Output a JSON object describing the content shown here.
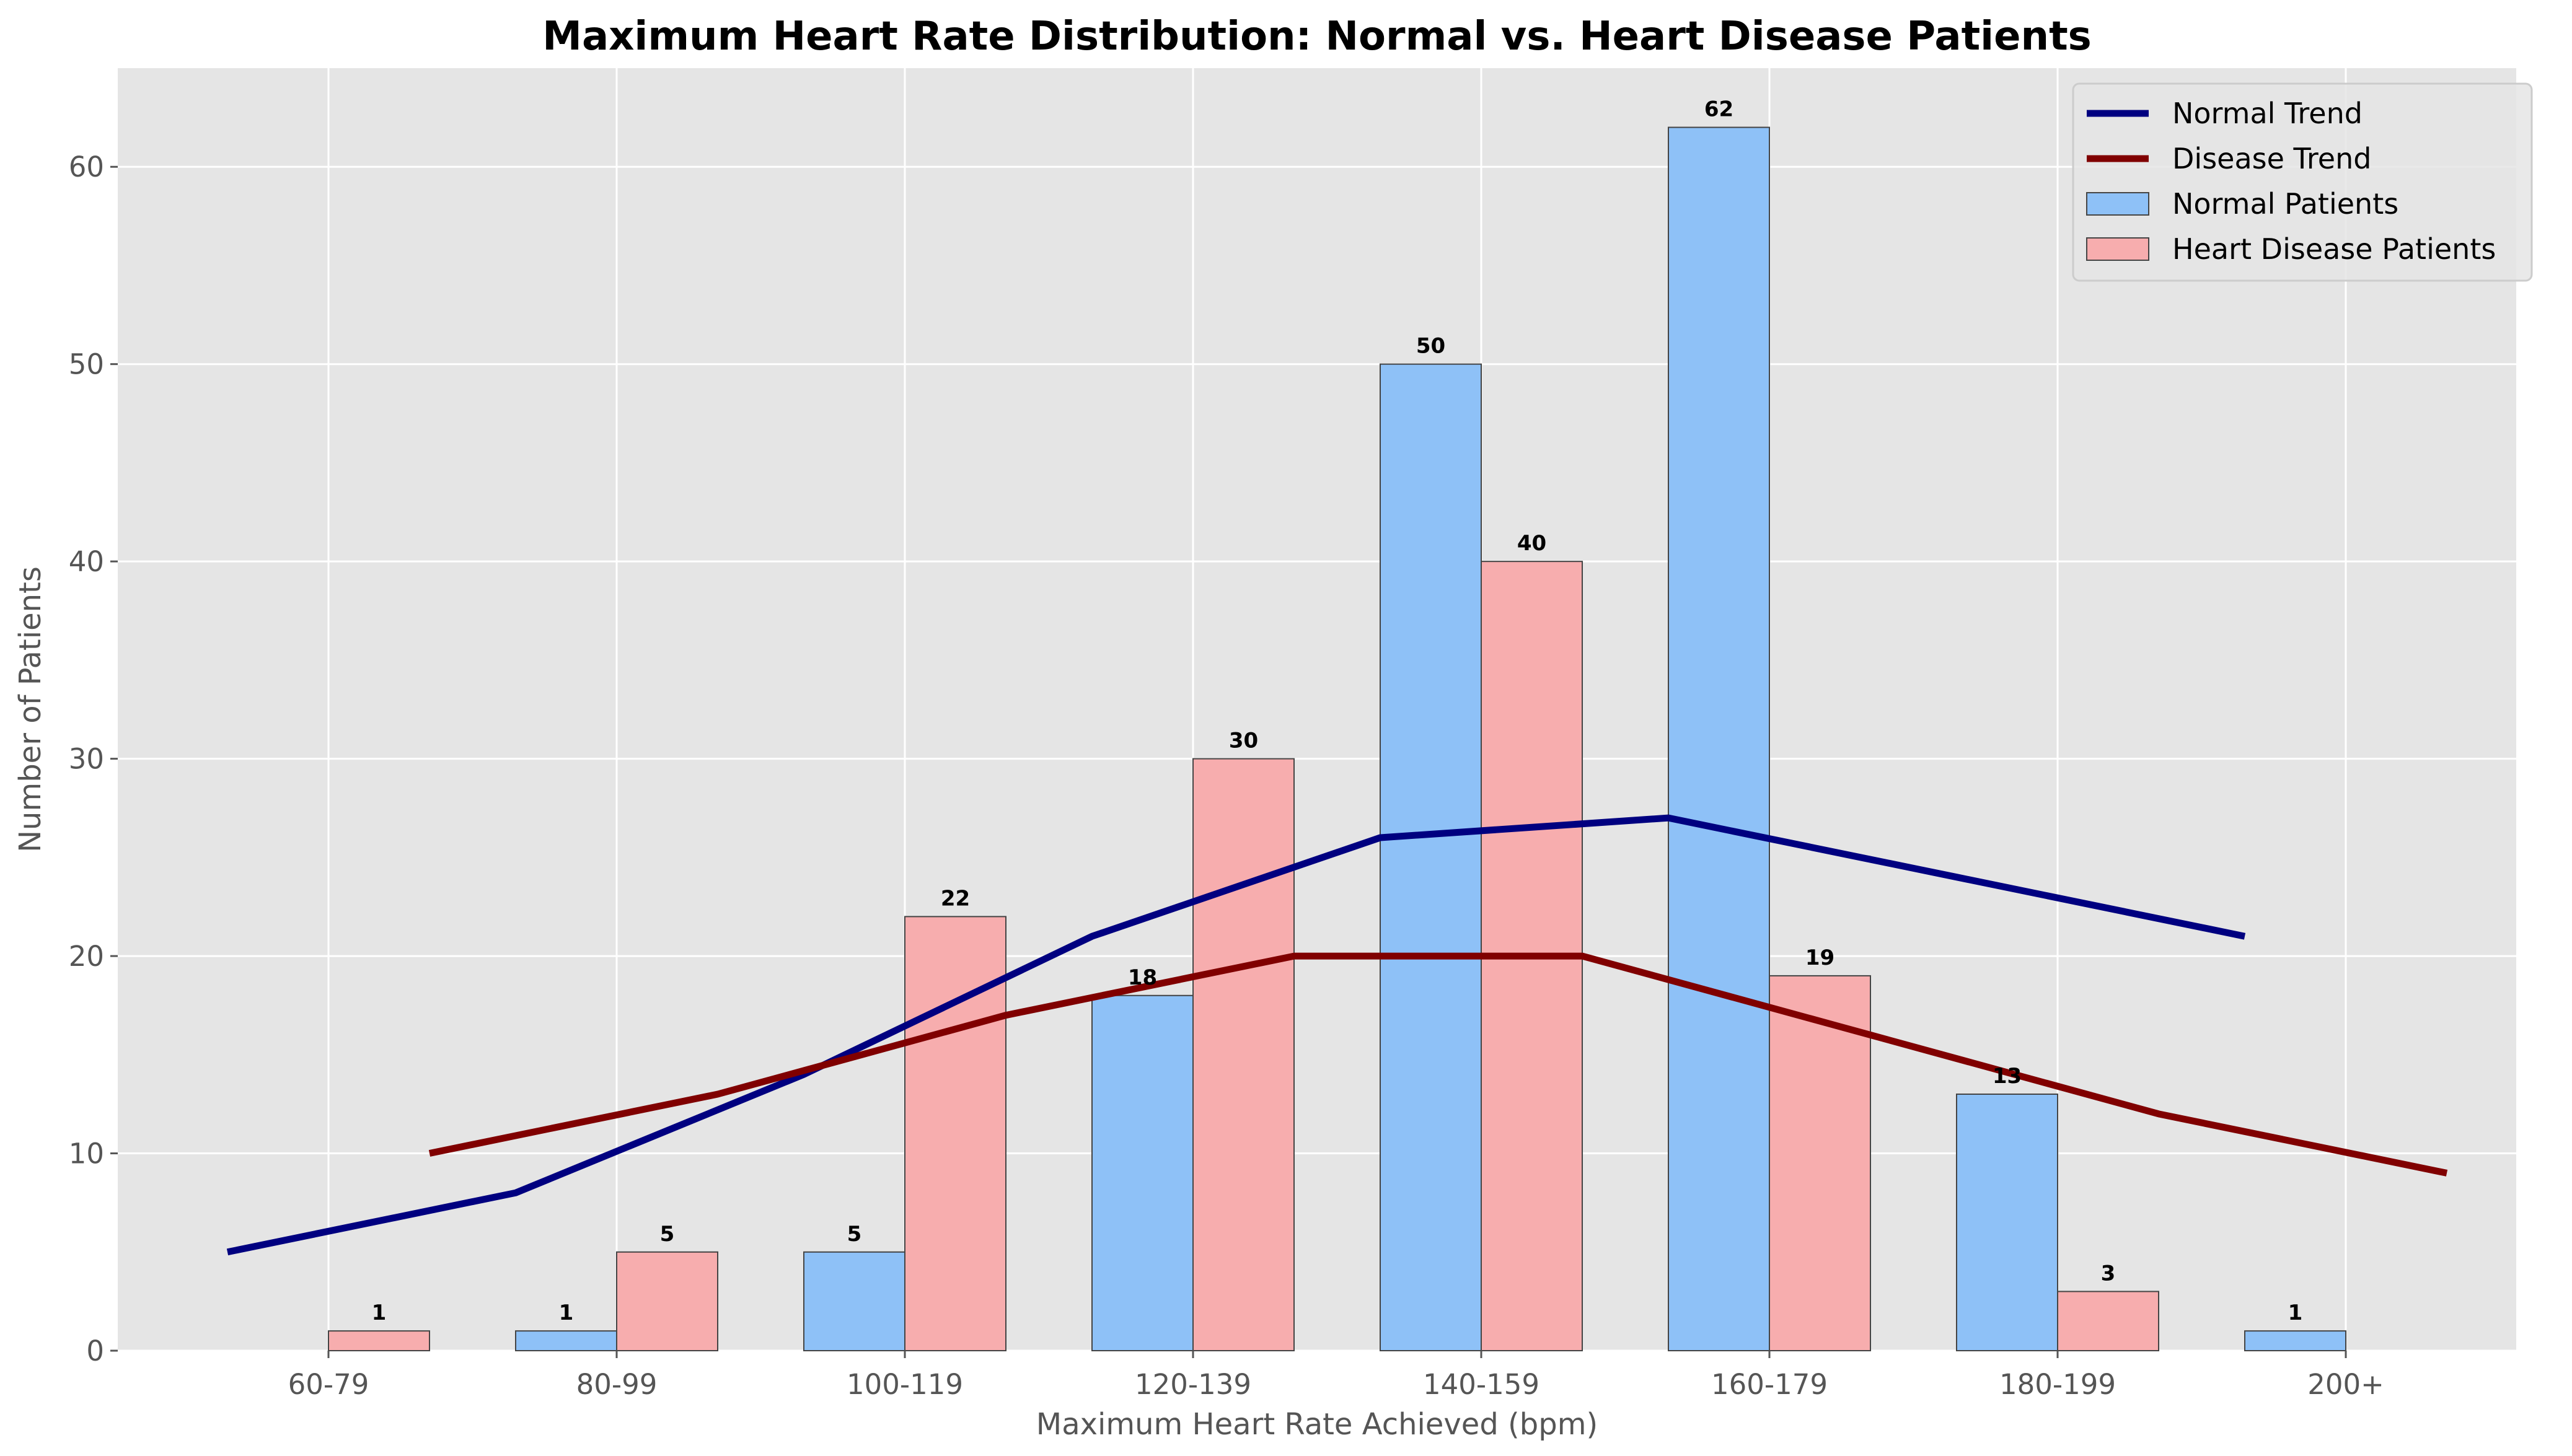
{
  "chart_data": {
    "type": "bar",
    "title": "Maximum Heart Rate Distribution: Normal vs. Heart Disease Patients",
    "xlabel": "Maximum Heart Rate Achieved (bpm)",
    "ylabel": "Number of Patients",
    "categories": [
      "60-79",
      "80-99",
      "100-119",
      "120-139",
      "140-159",
      "160-179",
      "180-199",
      "200+"
    ],
    "ylim": [
      0,
      65
    ],
    "yticks": [
      0,
      10,
      20,
      30,
      40,
      50,
      60
    ],
    "grid": true,
    "legend_position": "top-right",
    "series": [
      {
        "name": "Normal Patients",
        "kind": "bar",
        "color": "#8ec1f7",
        "values": [
          0,
          1,
          5,
          18,
          50,
          62,
          13,
          1
        ]
      },
      {
        "name": "Heart Disease Patients",
        "kind": "bar",
        "color": "#f7adae",
        "values": [
          1,
          5,
          22,
          30,
          40,
          19,
          3,
          0
        ]
      },
      {
        "name": "Normal Trend",
        "kind": "line",
        "color": "#000080",
        "values": [
          5,
          8,
          14,
          21,
          26,
          27,
          24,
          21
        ]
      },
      {
        "name": "Disease Trend",
        "kind": "line",
        "color": "#800000",
        "values": [
          10,
          13,
          17,
          20,
          20,
          16,
          12,
          9
        ]
      }
    ],
    "legend_order": [
      "Normal Trend",
      "Disease Trend",
      "Normal Patients",
      "Heart Disease Patients"
    ]
  }
}
